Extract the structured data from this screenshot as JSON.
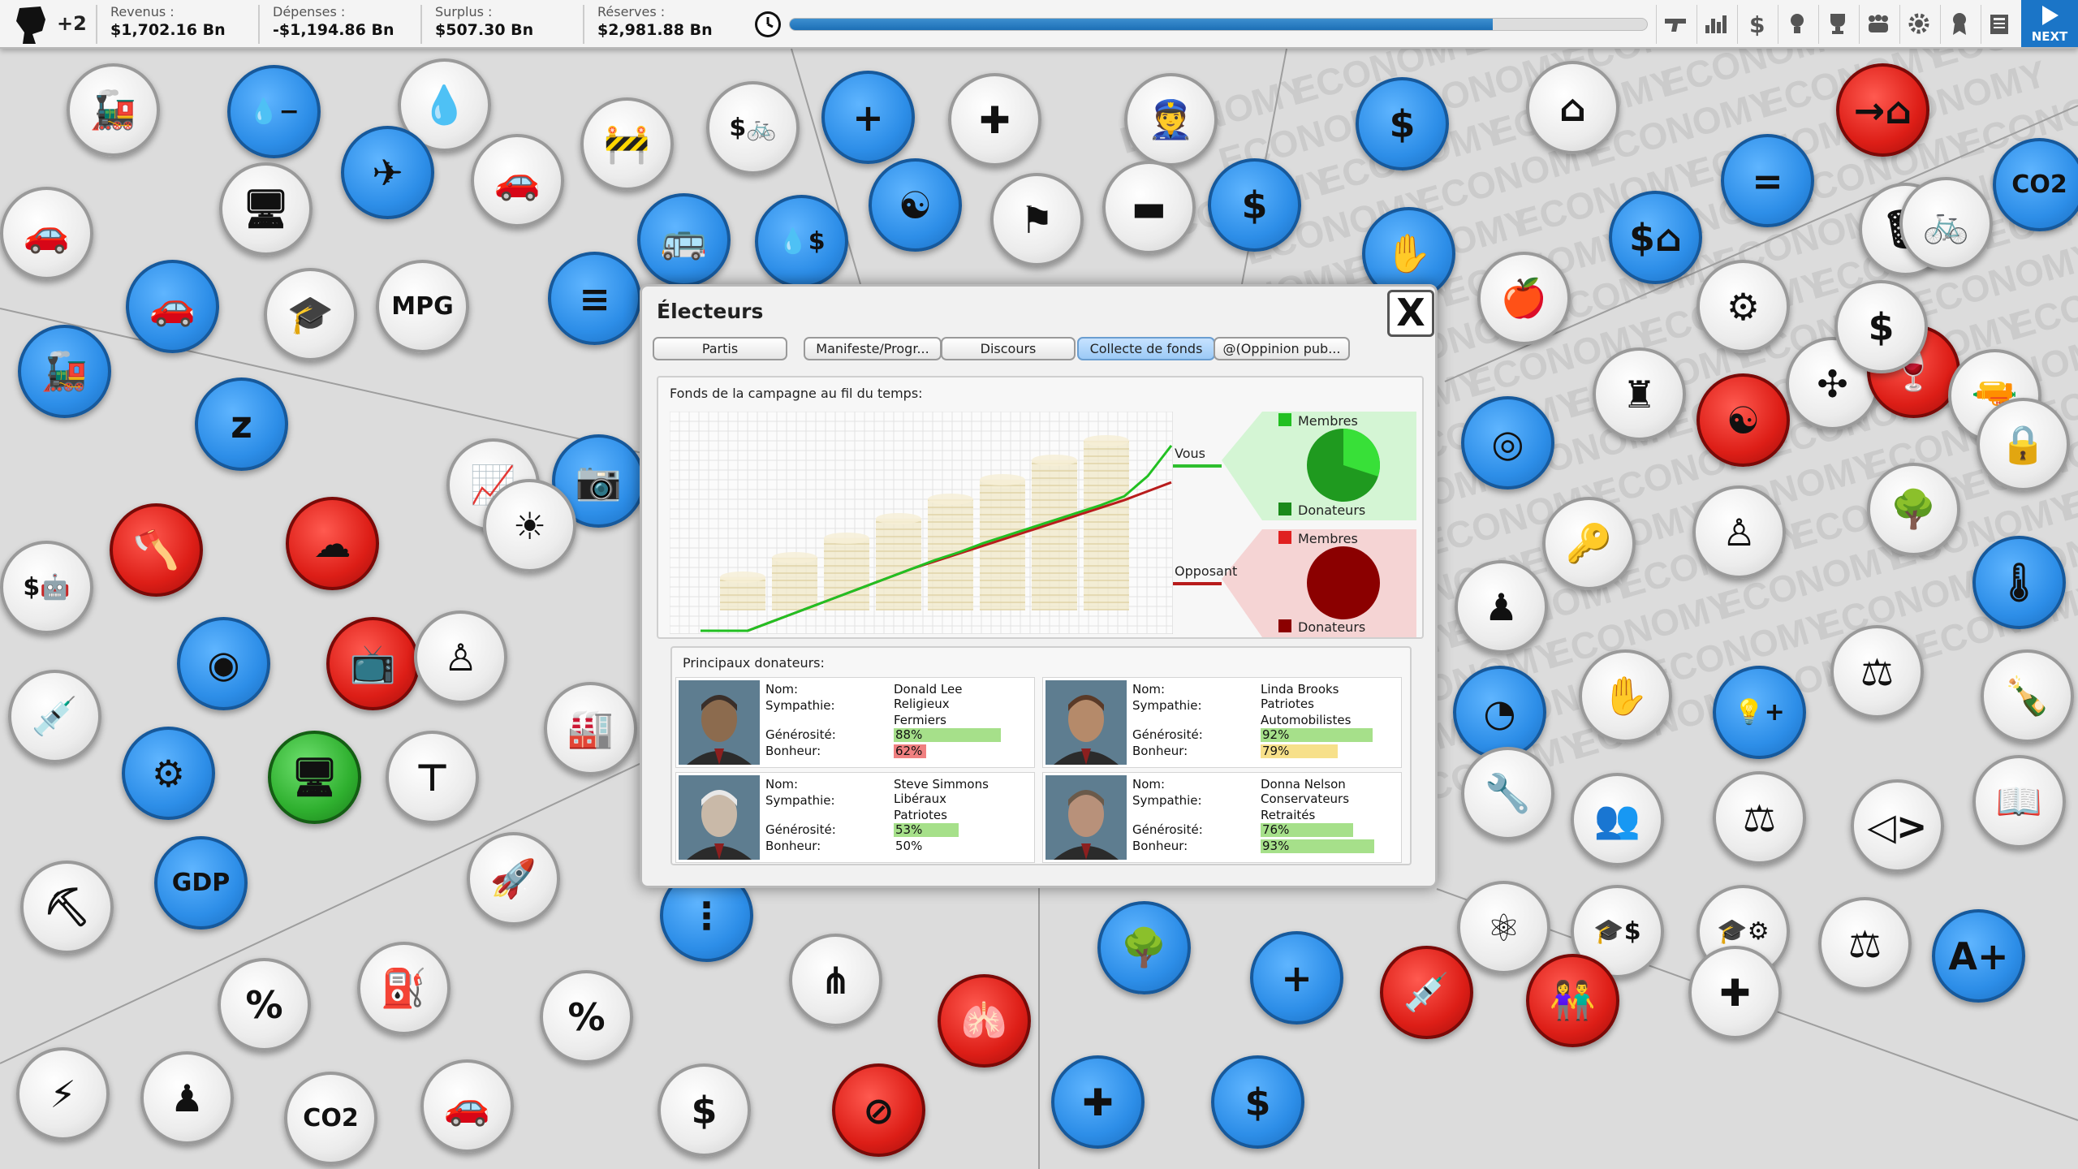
{
  "topbar": {
    "political_capital": "+2",
    "finances": [
      {
        "label": "Revenus :",
        "value": "$1,702.16 Bn"
      },
      {
        "label": "Dépenses :",
        "value": "-$1,194.86 Bn"
      },
      {
        "label": "Surplus :",
        "value": "$507.30 Bn"
      },
      {
        "label": "Réserves :",
        "value": "$2,981.88 Bn"
      }
    ],
    "term_progress": 0.82,
    "tool_icons": [
      "gun-icon",
      "chart-icon",
      "dollar-icon",
      "lightbulb-icon",
      "trophy-icon",
      "people-icon",
      "gear-icon",
      "award-icon",
      "newspaper-icon"
    ],
    "next_label": "NEXT"
  },
  "background": {
    "watermark_word": "ECONOMY",
    "bubbles": [
      {
        "id": "train",
        "glyph": "🚂",
        "color": "grey"
      },
      {
        "id": "water-minus",
        "glyph": "💧−",
        "color": "blue"
      },
      {
        "id": "rain",
        "glyph": "💧",
        "color": "grey"
      },
      {
        "id": "road-works",
        "glyph": "🚧",
        "color": "grey"
      },
      {
        "id": "bike-dollar",
        "glyph": "$🚲",
        "color": "grey"
      },
      {
        "id": "person-plus",
        "glyph": "+",
        "color": "blue"
      },
      {
        "id": "ship-cross",
        "glyph": "✚",
        "color": "grey"
      },
      {
        "id": "police-card",
        "glyph": "👮",
        "color": "grey"
      },
      {
        "id": "no-dollar",
        "glyph": "$",
        "color": "blue"
      },
      {
        "id": "house-person",
        "glyph": "⌂",
        "color": "grey"
      },
      {
        "id": "person-arrow-house",
        "glyph": "→⌂",
        "color": "red"
      },
      {
        "id": "co2-top",
        "glyph": "CO2",
        "color": "blue"
      },
      {
        "id": "electric-car",
        "glyph": "🚗",
        "color": "grey"
      },
      {
        "id": "computer-house",
        "glyph": "🖥",
        "color": "grey"
      },
      {
        "id": "plane",
        "glyph": "✈",
        "color": "blue"
      },
      {
        "id": "family-car",
        "glyph": "🚗",
        "color": "grey"
      },
      {
        "id": "bus",
        "glyph": "🚌",
        "color": "blue"
      },
      {
        "id": "oil-dollar",
        "glyph": "💧$",
        "color": "blue"
      },
      {
        "id": "yin-yang",
        "glyph": "☯",
        "color": "blue"
      },
      {
        "id": "flag-grad",
        "glyph": "⚑",
        "color": "grey"
      },
      {
        "id": "tank",
        "glyph": "▬",
        "color": "grey"
      },
      {
        "id": "pension",
        "glyph": "$",
        "color": "blue"
      },
      {
        "id": "factory-hand",
        "glyph": "✋",
        "color": "blue"
      },
      {
        "id": "apple",
        "glyph": "🍎",
        "color": "grey"
      },
      {
        "id": "dollar-house",
        "glyph": "$⌂",
        "color": "blue"
      },
      {
        "id": "equal-people",
        "glyph": "=",
        "color": "blue"
      },
      {
        "id": "bins",
        "glyph": "🗑",
        "color": "grey"
      },
      {
        "id": "screen-bike",
        "glyph": "🚲",
        "color": "grey"
      },
      {
        "id": "car-blue",
        "glyph": "🚗",
        "color": "blue"
      },
      {
        "id": "school-bus",
        "glyph": "🎓",
        "color": "grey"
      },
      {
        "id": "mpg",
        "glyph": "MPG",
        "color": "grey"
      },
      {
        "id": "coins-stack",
        "glyph": "≡",
        "color": "blue"
      },
      {
        "id": "gear-hand",
        "glyph": "⚙",
        "color": "grey"
      },
      {
        "id": "wind-solar",
        "glyph": "✣",
        "color": "grey"
      },
      {
        "id": "wine",
        "glyph": "🍷",
        "color": "red"
      },
      {
        "id": "gun",
        "glyph": "🔫",
        "color": "grey"
      },
      {
        "id": "lock-houses",
        "glyph": "🔒",
        "color": "grey"
      },
      {
        "id": "steam-train",
        "glyph": "🚂",
        "color": "blue"
      },
      {
        "id": "sleep",
        "glyph": "z",
        "color": "blue"
      },
      {
        "id": "stats-screen",
        "glyph": "📈",
        "color": "grey"
      },
      {
        "id": "camera",
        "glyph": "📷",
        "color": "blue"
      },
      {
        "id": "coins-blue",
        "glyph": "◎",
        "color": "blue"
      },
      {
        "id": "soldier",
        "glyph": "♜",
        "color": "grey"
      },
      {
        "id": "house-yinyang",
        "glyph": "☯",
        "color": "red"
      },
      {
        "id": "dollar-school",
        "glyph": "$",
        "color": "grey"
      },
      {
        "id": "robot-dollar",
        "glyph": "$🤖",
        "color": "grey"
      },
      {
        "id": "axe-robot",
        "glyph": "🪓",
        "color": "red"
      },
      {
        "id": "cloud",
        "glyph": "☁",
        "color": "red"
      },
      {
        "id": "person-light",
        "glyph": "☀",
        "color": "grey"
      },
      {
        "id": "officer",
        "glyph": "♟",
        "color": "grey"
      },
      {
        "id": "key-door",
        "glyph": "🔑",
        "color": "grey"
      },
      {
        "id": "single-officer",
        "glyph": "♙",
        "color": "grey"
      },
      {
        "id": "tree-computer",
        "glyph": "🌳",
        "color": "grey"
      },
      {
        "id": "thermometer",
        "glyph": "🌡",
        "color": "blue"
      },
      {
        "id": "coins-flat",
        "glyph": "◉",
        "color": "blue"
      },
      {
        "id": "tv-hand",
        "glyph": "📺",
        "color": "red"
      },
      {
        "id": "traffic-officer",
        "glyph": "♙",
        "color": "grey"
      },
      {
        "id": "factory",
        "glyph": "🏭",
        "color": "grey"
      },
      {
        "id": "pie-person",
        "glyph": "◔",
        "color": "blue"
      },
      {
        "id": "people-hand",
        "glyph": "✋",
        "color": "grey"
      },
      {
        "id": "bulb-plus",
        "glyph": "💡+",
        "color": "blue"
      },
      {
        "id": "gavel",
        "glyph": "⚖",
        "color": "grey"
      },
      {
        "id": "wine-bottle",
        "glyph": "🍾",
        "color": "grey"
      },
      {
        "id": "syringe",
        "glyph": "💉",
        "color": "grey"
      },
      {
        "id": "gear-screen",
        "glyph": "⚙",
        "color": "blue"
      },
      {
        "id": "green-computer",
        "glyph": "🖥",
        "color": "green"
      },
      {
        "id": "presentation",
        "glyph": "⊤",
        "color": "grey"
      },
      {
        "id": "tools",
        "glyph": "🔧",
        "color": "grey"
      },
      {
        "id": "crowd",
        "glyph": "👥",
        "color": "grey"
      },
      {
        "id": "judge-crowd",
        "glyph": "⚖",
        "color": "grey"
      },
      {
        "id": "fish",
        "glyph": "◁>",
        "color": "grey"
      },
      {
        "id": "book",
        "glyph": "📖",
        "color": "grey"
      },
      {
        "id": "oil-drill",
        "glyph": "⛏",
        "color": "grey"
      },
      {
        "id": "gdp",
        "glyph": "GDP",
        "color": "blue"
      },
      {
        "id": "rocket",
        "glyph": "🚀",
        "color": "grey"
      },
      {
        "id": "org-chart",
        "glyph": "⋮",
        "color": "blue"
      },
      {
        "id": "atom",
        "glyph": "⚛",
        "color": "grey"
      },
      {
        "id": "grad-dollar",
        "glyph": "🎓$",
        "color": "grey"
      },
      {
        "id": "grad-gear",
        "glyph": "🎓⚙",
        "color": "grey"
      },
      {
        "id": "judge-woman",
        "glyph": "⚖",
        "color": "grey"
      },
      {
        "id": "report-a",
        "glyph": "A+",
        "color": "blue"
      },
      {
        "id": "tax-bag",
        "glyph": "%",
        "color": "grey"
      },
      {
        "id": "fuel",
        "glyph": "⛽",
        "color": "grey"
      },
      {
        "id": "percent",
        "glyph": "%",
        "color": "grey"
      },
      {
        "id": "hierarchy",
        "glyph": "⋔",
        "color": "grey"
      },
      {
        "id": "lungs",
        "glyph": "🫁",
        "color": "red"
      },
      {
        "id": "trees",
        "glyph": "🌳",
        "color": "blue"
      },
      {
        "id": "person-plus-2",
        "glyph": "+",
        "color": "blue"
      },
      {
        "id": "syringe-red",
        "glyph": "💉",
        "color": "red"
      },
      {
        "id": "couple",
        "glyph": "👫",
        "color": "red"
      },
      {
        "id": "crowd-cross",
        "glyph": "✚",
        "color": "grey"
      },
      {
        "id": "car-lightning",
        "glyph": "⚡",
        "color": "grey"
      },
      {
        "id": "tie-person",
        "glyph": "♟",
        "color": "grey"
      },
      {
        "id": "co2-bottom",
        "glyph": "CO2",
        "color": "grey"
      },
      {
        "id": "small-car",
        "glyph": "🚗",
        "color": "grey"
      },
      {
        "id": "coins-dollar",
        "glyph": "$",
        "color": "grey"
      },
      {
        "id": "no-car",
        "glyph": "⊘",
        "color": "red"
      },
      {
        "id": "medical-people",
        "glyph": "✚",
        "color": "blue"
      },
      {
        "id": "oil-dollar-2",
        "glyph": "$",
        "color": "blue"
      }
    ]
  },
  "dialog": {
    "title": "Électeurs",
    "close_label": "X",
    "tabs": [
      {
        "label": "Partis",
        "active": false
      },
      {
        "label": "Manifeste/Progr...",
        "active": false
      },
      {
        "label": "Discours",
        "active": false
      },
      {
        "label": "Collecte de fonds",
        "active": true
      },
      {
        "label": "@(Oppinion pub...",
        "active": false
      }
    ],
    "funds_title": "Fonds de la campagne au fil du temps:",
    "compare": {
      "you": {
        "label": "Vous",
        "members_label": "Membres",
        "donors_label": "Donateurs",
        "color": "#22c022",
        "members_share": 0.3
      },
      "opponent": {
        "label": "Opposant",
        "members_label": "Membres",
        "donors_label": "Donateurs",
        "color": "#8b0000",
        "members_share": 0.0
      }
    },
    "donors_title": "Principaux donateurs:",
    "field_labels": {
      "name": "Nom:",
      "sympathy": "Sympathie:",
      "generosity": "Générosité:",
      "happiness": "Bonheur:"
    },
    "donors": [
      {
        "name": "Donald Lee",
        "sympathy": [
          "Religieux",
          "Fermiers"
        ],
        "generosity": 88,
        "generosity_text": "88%",
        "happiness": 62,
        "happiness_text": "62%",
        "happiness_color": "#f08080"
      },
      {
        "name": "Linda Brooks",
        "sympathy": [
          "Patriotes",
          "Automobilistes"
        ],
        "generosity": 92,
        "generosity_text": "92%",
        "happiness": 79,
        "happiness_text": "79%",
        "happiness_color": "#f7e08a"
      },
      {
        "name": "Steve Simmons",
        "sympathy": [
          "Libéraux",
          "Patriotes"
        ],
        "generosity": 53,
        "generosity_text": "53%",
        "happiness": 50,
        "happiness_text": "50%",
        "happiness_color": "none"
      },
      {
        "name": "Donna Nelson",
        "sympathy": [
          "Conservateurs",
          "Retraités"
        ],
        "generosity": 76,
        "generosity_text": "76%",
        "happiness": 93,
        "happiness_text": "93%",
        "happiness_color": "#a6e08a"
      }
    ],
    "generosity_color": "#a6e08a",
    "happiness_mid_color": "#f7e08a"
  },
  "chart_data": {
    "type": "line",
    "title": "Fonds de la campagne au fil du temps:",
    "xlabel": "",
    "ylabel": "",
    "grid": true,
    "x": [
      0,
      1,
      2,
      3,
      4,
      5,
      6,
      7,
      8,
      9,
      10,
      11,
      12,
      13,
      14,
      15,
      16,
      17,
      18,
      19,
      20
    ],
    "series": [
      {
        "name": "Vous",
        "color": "#22c022",
        "values": [
          0,
          0,
          0,
          0.7,
          1.4,
          2.1,
          2.8,
          3.5,
          4.2,
          4.9,
          5.6,
          6.2,
          6.9,
          7.5,
          8.1,
          8.7,
          9.3,
          9.9,
          10.6,
          12.2,
          14.6
        ]
      },
      {
        "name": "Opposant",
        "color": "#b81c1c",
        "values": [
          0,
          0,
          0,
          0.7,
          1.4,
          2.1,
          2.8,
          3.5,
          4.2,
          4.9,
          5.5,
          6.1,
          6.7,
          7.3,
          7.9,
          8.5,
          9.1,
          9.7,
          10.3,
          11.0,
          11.7
        ]
      }
    ],
    "ylim": [
      0,
      16
    ],
    "coin_stacks": 8
  }
}
